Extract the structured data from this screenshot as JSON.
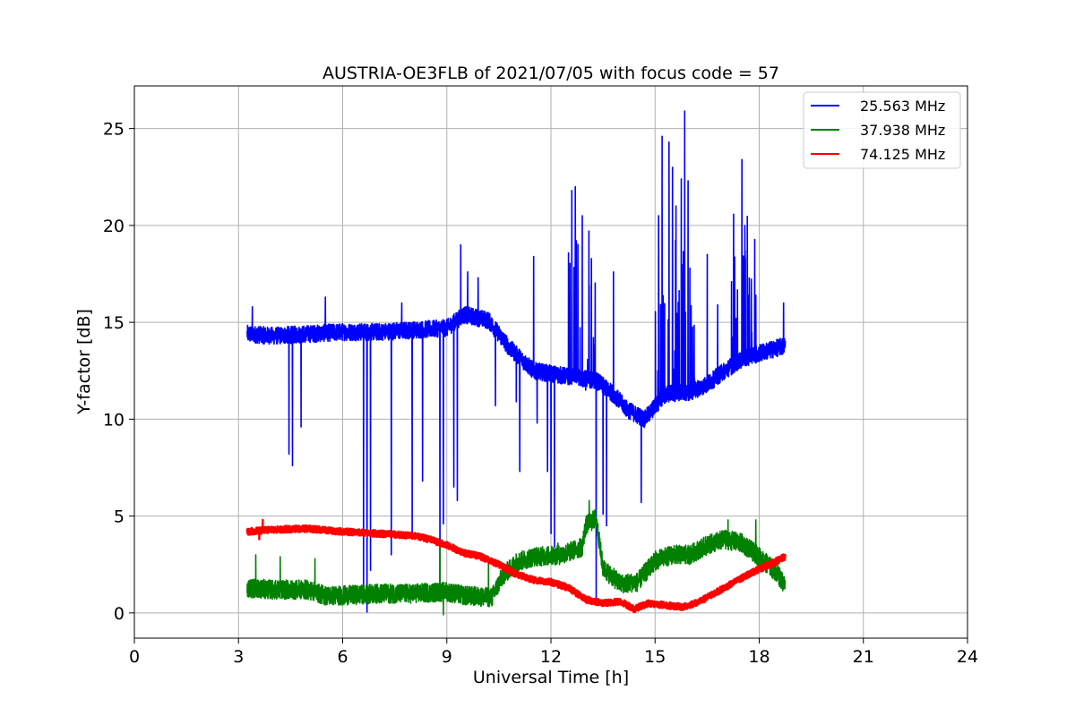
{
  "chart_data": {
    "type": "line",
    "title": "AUSTRIA-OE3FLB of 2021/07/05 with focus code = 57",
    "xlabel": "Universal Time [h]",
    "ylabel": "Y-factor [dB]",
    "xlim": [
      0,
      24
    ],
    "ylim": [
      -1.3,
      27.2
    ],
    "xticks": [
      0,
      3,
      6,
      9,
      12,
      15,
      18,
      21,
      24
    ],
    "yticks": [
      0,
      5,
      10,
      15,
      20,
      25
    ],
    "grid": true,
    "legend_position": "top-right",
    "series": [
      {
        "name": "25.563 MHz",
        "color": "#0000ff",
        "baseline": [
          [
            3.25,
            14.4
          ],
          [
            4.0,
            14.3
          ],
          [
            5.0,
            14.4
          ],
          [
            6.0,
            14.5
          ],
          [
            7.0,
            14.5
          ],
          [
            8.0,
            14.6
          ],
          [
            9.0,
            14.7
          ],
          [
            9.5,
            15.4
          ],
          [
            10.2,
            15.1
          ],
          [
            10.8,
            13.7
          ],
          [
            11.5,
            12.5
          ],
          [
            12.5,
            12.2
          ],
          [
            13.3,
            12.0
          ],
          [
            13.8,
            11.3
          ],
          [
            14.2,
            10.5
          ],
          [
            14.7,
            10.0
          ],
          [
            15.3,
            11.3
          ],
          [
            16.0,
            11.4
          ],
          [
            16.5,
            11.8
          ],
          [
            17.0,
            12.5
          ],
          [
            17.5,
            13.1
          ],
          [
            18.0,
            13.4
          ],
          [
            18.75,
            13.8
          ]
        ],
        "noise": 0.9,
        "spikes": [
          [
            3.4,
            15.8
          ],
          [
            4.45,
            8.2
          ],
          [
            4.55,
            7.6
          ],
          [
            4.8,
            9.6
          ],
          [
            5.5,
            16.3
          ],
          [
            6.6,
            0.5
          ],
          [
            6.7,
            0.05
          ],
          [
            6.8,
            2.2
          ],
          [
            7.4,
            3.0
          ],
          [
            7.7,
            16.0
          ],
          [
            8.0,
            4.0
          ],
          [
            8.3,
            6.8
          ],
          [
            8.8,
            0.9
          ],
          [
            8.9,
            4.6
          ],
          [
            9.2,
            6.5
          ],
          [
            9.3,
            5.8
          ],
          [
            9.4,
            19.0
          ],
          [
            9.6,
            17.6
          ],
          [
            9.9,
            17.3
          ],
          [
            10.4,
            10.7
          ],
          [
            11.0,
            10.9
          ],
          [
            11.1,
            7.3
          ],
          [
            11.5,
            18.4
          ],
          [
            11.6,
            9.8
          ],
          [
            11.9,
            7.3
          ],
          [
            12.0,
            4.1
          ],
          [
            12.1,
            3.4
          ],
          [
            12.6,
            21.8
          ],
          [
            12.7,
            22.0
          ],
          [
            12.9,
            20.5
          ],
          [
            13.0,
            11.5
          ],
          [
            13.1,
            16.9
          ],
          [
            13.3,
            0.5
          ],
          [
            13.5,
            5.1
          ],
          [
            13.6,
            4.5
          ],
          [
            13.8,
            17.6
          ],
          [
            13.95,
            11.0
          ],
          [
            14.6,
            5.7
          ],
          [
            15.1,
            20.5
          ],
          [
            15.2,
            24.6
          ],
          [
            15.4,
            24.3
          ],
          [
            15.5,
            23.0
          ],
          [
            15.6,
            21.0
          ],
          [
            15.75,
            22.4
          ],
          [
            15.85,
            25.9
          ],
          [
            15.95,
            22.3
          ],
          [
            16.0,
            17.8
          ],
          [
            16.5,
            18.5
          ],
          [
            16.8,
            15.9
          ],
          [
            17.2,
            17.1
          ],
          [
            17.5,
            23.4
          ],
          [
            17.6,
            18.3
          ],
          [
            17.9,
            16.4
          ],
          [
            18.7,
            16.0
          ]
        ],
        "spike_ranges": [
          [
            12.5,
            13.3
          ],
          [
            15.0,
            16.2
          ],
          [
            17.2,
            18.0
          ]
        ]
      },
      {
        "name": "37.938 MHz",
        "color": "#008000",
        "baseline": [
          [
            3.25,
            1.3
          ],
          [
            4.0,
            1.2
          ],
          [
            5.0,
            1.2
          ],
          [
            5.5,
            0.9
          ],
          [
            6.0,
            0.9
          ],
          [
            7.0,
            1.0
          ],
          [
            8.0,
            1.0
          ],
          [
            9.0,
            1.1
          ],
          [
            9.5,
            0.9
          ],
          [
            10.3,
            0.8
          ],
          [
            10.6,
            1.9
          ],
          [
            11.0,
            2.6
          ],
          [
            11.5,
            2.9
          ],
          [
            12.3,
            3.0
          ],
          [
            12.9,
            3.4
          ],
          [
            13.0,
            4.5
          ],
          [
            13.3,
            4.9
          ],
          [
            13.5,
            2.3
          ],
          [
            14.0,
            1.5
          ],
          [
            14.5,
            1.6
          ],
          [
            15.0,
            2.7
          ],
          [
            15.5,
            3.0
          ],
          [
            16.0,
            3.0
          ],
          [
            16.5,
            3.5
          ],
          [
            17.0,
            3.8
          ],
          [
            17.5,
            3.6
          ],
          [
            18.0,
            2.9
          ],
          [
            18.5,
            2.1
          ],
          [
            18.75,
            1.4
          ]
        ],
        "noise": 1.0,
        "spikes": [
          [
            3.5,
            3.0
          ],
          [
            4.2,
            2.9
          ],
          [
            5.2,
            2.8
          ],
          [
            8.8,
            3.7
          ],
          [
            8.9,
            -0.1
          ],
          [
            10.2,
            2.9
          ],
          [
            12.2,
            3.6
          ],
          [
            13.1,
            5.8
          ],
          [
            17.1,
            4.8
          ],
          [
            17.9,
            4.8
          ]
        ]
      },
      {
        "name": "74.125 MHz",
        "color": "#ff0000",
        "baseline": [
          [
            3.25,
            4.2
          ],
          [
            4.0,
            4.3
          ],
          [
            5.0,
            4.35
          ],
          [
            6.0,
            4.2
          ],
          [
            7.0,
            4.1
          ],
          [
            8.0,
            4.0
          ],
          [
            8.5,
            3.8
          ],
          [
            9.0,
            3.5
          ],
          [
            9.5,
            3.1
          ],
          [
            10.0,
            2.9
          ],
          [
            10.5,
            2.5
          ],
          [
            11.0,
            2.0
          ],
          [
            11.5,
            1.7
          ],
          [
            12.0,
            1.6
          ],
          [
            12.5,
            1.3
          ],
          [
            13.0,
            0.7
          ],
          [
            13.5,
            0.5
          ],
          [
            14.0,
            0.6
          ],
          [
            14.4,
            0.2
          ],
          [
            14.8,
            0.5
          ],
          [
            15.3,
            0.4
          ],
          [
            15.8,
            0.3
          ],
          [
            16.3,
            0.6
          ],
          [
            16.8,
            1.1
          ],
          [
            17.3,
            1.6
          ],
          [
            17.8,
            2.1
          ],
          [
            18.3,
            2.5
          ],
          [
            18.75,
            2.9
          ]
        ],
        "noise": 0.35,
        "spikes": [
          [
            3.6,
            3.8
          ],
          [
            3.7,
            4.8
          ]
        ]
      }
    ]
  }
}
